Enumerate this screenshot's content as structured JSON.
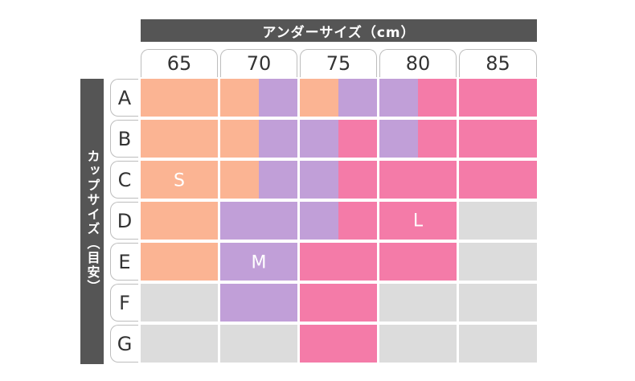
{
  "under_size_header": "アンダーサイズ（cm）",
  "cup_size_header": "カップサイズ（目安）",
  "columns": [
    "65",
    "70",
    "75",
    "80",
    "85"
  ],
  "rows": [
    "A",
    "B",
    "C",
    "D",
    "E",
    "F",
    "G"
  ],
  "size_labels": {
    "S": "S",
    "M": "M",
    "L": "L"
  },
  "colors": {
    "S": "#fbb493",
    "M": "#c19fd8",
    "L": "#f47ba8",
    "none": "#dcdcdc",
    "header": "#555555"
  },
  "grid": [
    [
      [
        "S"
      ],
      [
        "S",
        "M"
      ],
      [
        "S",
        "M"
      ],
      [
        "M",
        "L"
      ],
      [
        "L"
      ]
    ],
    [
      [
        "S"
      ],
      [
        "S",
        "M"
      ],
      [
        "M",
        "L"
      ],
      [
        "M",
        "L"
      ],
      [
        "L"
      ]
    ],
    [
      [
        "S"
      ],
      [
        "S",
        "M"
      ],
      [
        "M",
        "L"
      ],
      [
        "L"
      ],
      [
        "L"
      ]
    ],
    [
      [
        "S"
      ],
      [
        "M"
      ],
      [
        "M",
        "L"
      ],
      [
        "L"
      ],
      [
        "none"
      ]
    ],
    [
      [
        "S"
      ],
      [
        "M"
      ],
      [
        "L"
      ],
      [
        "L"
      ],
      [
        "none"
      ]
    ],
    [
      [
        "none"
      ],
      [
        "M"
      ],
      [
        "L"
      ],
      [
        "none"
      ],
      [
        "none"
      ]
    ],
    [
      [
        "none"
      ],
      [
        "none"
      ],
      [
        "L"
      ],
      [
        "none"
      ],
      [
        "none"
      ]
    ]
  ]
}
